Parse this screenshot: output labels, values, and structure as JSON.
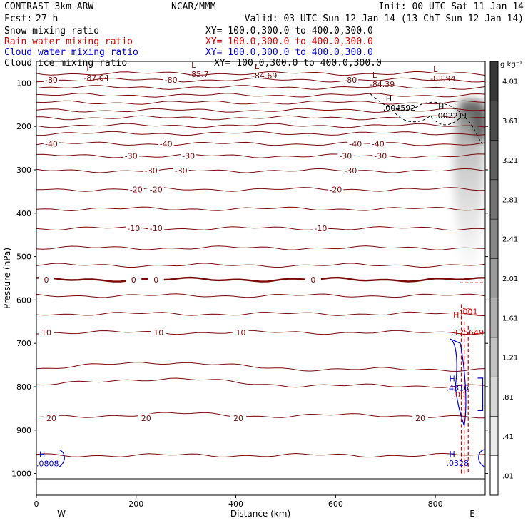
{
  "header": {
    "model": "CONTRAST  3km ARW",
    "org": "NCAR/MMM",
    "init": "Init: 00 UTC Sat 11 Jan 14",
    "fcst_label": "Fcst:",
    "fcst_value": "27 h",
    "valid": "Valid: 03 UTC Sun 12 Jan 14 (13 ChT Sun 12 Jan 14)"
  },
  "fields": [
    {
      "name": "Snow mixing ratio",
      "xy": "XY= 100.0,300.0 to 400.0,300.0",
      "color": "#000000"
    },
    {
      "name": "Rain water mixing ratio",
      "xy": "XY= 100.0,300.0 to 400.0,300.0",
      "color": "#dd0000"
    },
    {
      "name": "Cloud water mixing ratio",
      "xy": "XY= 100.0,300.0 to 400.0,300.0",
      "color": "#0000cc"
    },
    {
      "name": "Cloud ice mixing ratio",
      "xy": "XY= 100.0,300.0 to 400.0,300.0",
      "color": "#000000"
    }
  ],
  "chart_data": {
    "type": "cross-section",
    "xlabel": "Distance (km)",
    "ylabel": "Pressure (hPa)",
    "xlim": [
      0,
      900
    ],
    "ylim": [
      1050,
      50
    ],
    "x_ticks": [
      0,
      200,
      400,
      600,
      800
    ],
    "y_ticks": [
      100,
      200,
      300,
      400,
      500,
      600,
      700,
      800,
      900,
      1000
    ],
    "x_ends": {
      "left": "W",
      "right": "E"
    },
    "temperature_contours": {
      "color": "#7a0a0a",
      "units": "C",
      "levels": [
        {
          "p": 78,
          "label": "",
          "at": []
        },
        {
          "p": 93,
          "label": "-80",
          "at": [
            30,
            270,
            630
          ]
        },
        {
          "p": 110,
          "label": "",
          "at": []
        },
        {
          "p": 128,
          "label": "",
          "at": []
        },
        {
          "p": 145,
          "label": "",
          "at": []
        },
        {
          "p": 163,
          "label": "",
          "at": []
        },
        {
          "p": 180,
          "label": "",
          "at": []
        },
        {
          "p": 198,
          "label": "",
          "at": []
        },
        {
          "p": 216,
          "label": "",
          "at": []
        },
        {
          "p": 240,
          "label": "-40",
          "at": [
            30,
            260,
            640,
            685
          ]
        },
        {
          "p": 268,
          "label": "-30",
          "at": [
            190,
            305,
            620,
            690
          ]
        },
        {
          "p": 302,
          "label": "-30",
          "at": [
            230,
            290,
            630
          ]
        },
        {
          "p": 345,
          "label": "-20",
          "at": [
            200,
            240,
            600
          ]
        },
        {
          "p": 390,
          "label": "",
          "at": []
        },
        {
          "p": 435,
          "label": "-10",
          "at": [
            195,
            240,
            570
          ]
        },
        {
          "p": 480,
          "label": "",
          "at": []
        },
        {
          "p": 520,
          "label": "",
          "at": []
        },
        {
          "p": 553,
          "label": "0",
          "at": [
            20,
            195,
            240,
            555
          ],
          "bold": true
        },
        {
          "p": 590,
          "label": "",
          "at": []
        },
        {
          "p": 632,
          "label": "",
          "at": []
        },
        {
          "p": 675,
          "label": "10",
          "at": [
            20,
            245,
            410
          ]
        },
        {
          "p": 760,
          "label": "",
          "at": []
        },
        {
          "p": 798,
          "label": "",
          "at": []
        },
        {
          "p": 872,
          "label": "20",
          "at": [
            30,
            220,
            405,
            770
          ]
        },
        {
          "p": 958,
          "label": "",
          "at": []
        }
      ]
    },
    "pressure_lows": [
      {
        "x": 95,
        "p": 78,
        "symbol": "L",
        "value": "-87.04"
      },
      {
        "x": 305,
        "p": 70,
        "symbol": "L",
        "value": "-85.7"
      },
      {
        "x": 432,
        "p": 73,
        "symbol": "L",
        "value": "-84.69"
      },
      {
        "x": 668,
        "p": 93,
        "symbol": "L",
        "value": "-84.39"
      },
      {
        "x": 790,
        "p": 80,
        "symbol": "L",
        "value": "-83.94"
      }
    ],
    "ice_highs": [
      {
        "x": 695,
        "p": 147,
        "symbol": "H",
        "value": ".004592"
      },
      {
        "x": 800,
        "p": 165,
        "symbol": "H",
        "value": ".002211"
      }
    ],
    "rain_labels": [
      {
        "x": 850,
        "p": 617,
        "value": ".001"
      },
      {
        "x": 830,
        "p": 645,
        "symbol": "H",
        "value": ""
      },
      {
        "x": 832,
        "p": 665,
        "value": ".125649"
      },
      {
        "x": 835,
        "p": 808,
        "value": ".00"
      }
    ],
    "cloud_water_labels": [
      {
        "x": 0,
        "p": 967,
        "symbol": "H",
        "value": ".0808"
      },
      {
        "x": 822,
        "p": 966,
        "symbol": "H",
        "value": ".0328"
      },
      {
        "x": 822,
        "p": 793,
        "symbol": "H",
        "value": ".4816"
      }
    ],
    "colorbar": {
      "units": "g kg⁻¹",
      "labels": [
        ".01",
        ".41",
        ".81",
        "1.21",
        "1.61",
        "2.01",
        "2.41",
        "2.81",
        "3.21",
        "3.61",
        "4.01"
      ]
    }
  }
}
